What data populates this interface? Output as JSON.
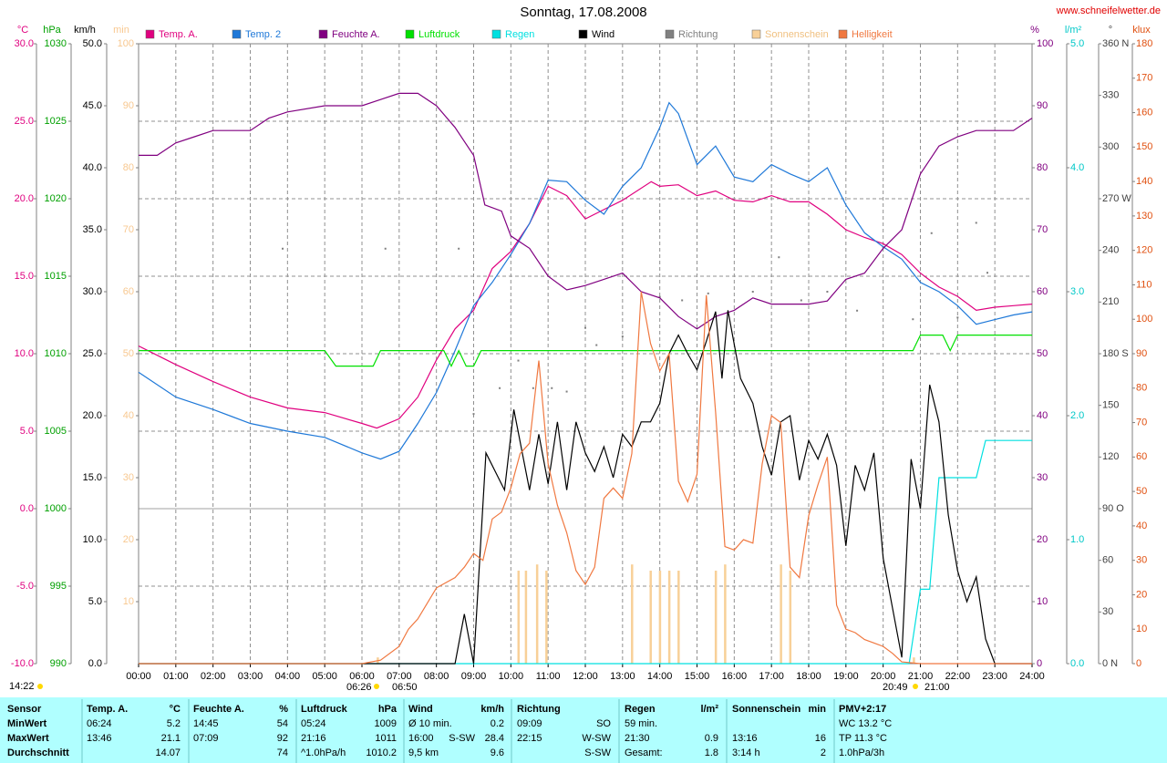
{
  "chart_data": {
    "type": "line",
    "title": "Sonntag, 17.08.2008",
    "source": "www.schneifelwetter.de",
    "xlim": [
      0,
      24
    ],
    "xticks": [
      {
        "value": 0,
        "label": "00:00"
      },
      {
        "value": 1,
        "label": "01:00"
      },
      {
        "value": 2,
        "label": "02:00"
      },
      {
        "value": 3,
        "label": "03:00"
      },
      {
        "value": 4,
        "label": "04:00"
      },
      {
        "value": 5,
        "label": "05:00"
      },
      {
        "value": 6,
        "label": "06:00"
      },
      {
        "value": 7,
        "label": "07:00"
      },
      {
        "value": 8,
        "label": "08:00"
      },
      {
        "value": 9,
        "label": "09:00"
      },
      {
        "value": 10,
        "label": "10:00"
      },
      {
        "value": 11,
        "label": "11:00"
      },
      {
        "value": 12,
        "label": "12:00"
      },
      {
        "value": 13,
        "label": "13:00"
      },
      {
        "value": 14,
        "label": "14:00"
      },
      {
        "value": 15,
        "label": "15:00"
      },
      {
        "value": 16,
        "label": "16:00"
      },
      {
        "value": 17,
        "label": "17:00"
      },
      {
        "value": 18,
        "label": "18:00"
      },
      {
        "value": 19,
        "label": "19:00"
      },
      {
        "value": 20,
        "label": "20:00"
      },
      {
        "value": 21,
        "label": "21:00"
      },
      {
        "value": 22,
        "label": "22:00"
      },
      {
        "value": 23,
        "label": "23:00"
      },
      {
        "value": 24,
        "label": "24:00"
      }
    ],
    "grid": true,
    "axes": [
      {
        "label": "°C",
        "color": "#e0007f",
        "lim": [
          -10,
          30
        ],
        "ticks": [
          {
            "value": -10,
            "label": "-10.0"
          },
          {
            "value": -5,
            "label": "-5.0"
          },
          {
            "value": 0,
            "label": "0.0"
          },
          {
            "value": 5,
            "label": "5.0"
          },
          {
            "value": 10,
            "label": "10.0"
          },
          {
            "value": 15,
            "label": "15.0"
          },
          {
            "value": 20,
            "label": "20.0"
          },
          {
            "value": 25,
            "label": "25.0"
          },
          {
            "value": 30,
            "label": "30.0"
          }
        ]
      },
      {
        "label": "hPa",
        "color": "#00a000",
        "lim": [
          990,
          1030
        ],
        "ticks": [
          990,
          995,
          1000,
          1005,
          1010,
          1015,
          1020,
          1025,
          1030
        ]
      },
      {
        "label": "km/h",
        "color": "#000000",
        "lim": [
          0,
          50
        ],
        "ticks": [
          {
            "value": 0,
            "label": "0.0"
          },
          {
            "value": 5,
            "label": "5.0"
          },
          {
            "value": 10,
            "label": "10.0"
          },
          {
            "value": 15,
            "label": "15.0"
          },
          {
            "value": 20,
            "label": "20.0"
          },
          {
            "value": 25,
            "label": "25.0"
          },
          {
            "value": 30,
            "label": "30.0"
          },
          {
            "value": 35,
            "label": "35.0"
          },
          {
            "value": 40,
            "label": "40.0"
          },
          {
            "value": 45,
            "label": "45.0"
          },
          {
            "value": 50,
            "label": "50.0"
          }
        ]
      },
      {
        "label": "min",
        "color": "#f8c890",
        "lim": [
          0,
          100
        ],
        "ticks": [
          10,
          20,
          30,
          40,
          50,
          60,
          70,
          80,
          90,
          100
        ]
      },
      {
        "label": "%",
        "color": "#800080",
        "lim": [
          0,
          100
        ],
        "ticks": [
          0,
          10,
          20,
          30,
          40,
          50,
          60,
          70,
          80,
          90,
          100
        ]
      },
      {
        "label": "l/m²",
        "color": "#00c8c8",
        "lim": [
          0,
          5
        ],
        "ticks": [
          {
            "value": 0,
            "label": "0.0"
          },
          {
            "value": 1,
            "label": "1.0"
          },
          {
            "value": 2,
            "label": "2.0"
          },
          {
            "value": 3,
            "label": "3.0"
          },
          {
            "value": 4,
            "label": "4.0"
          },
          {
            "value": 5,
            "label": "5.0"
          }
        ]
      },
      {
        "label": "°",
        "color": "#404040",
        "lim": [
          0,
          360
        ],
        "ticks": [
          {
            "value": 0,
            "label": "0 N"
          },
          30,
          60,
          {
            "value": 90,
            "label": "90 O"
          },
          120,
          150,
          {
            "value": 180,
            "label": "180 S"
          },
          210,
          240,
          {
            "value": 270,
            "label": "270 W"
          },
          300,
          330,
          {
            "value": 360,
            "label": "360 N"
          }
        ]
      },
      {
        "label": "klux",
        "color": "#e05010",
        "lim": [
          0,
          180
        ],
        "ticks": [
          0,
          10,
          20,
          30,
          40,
          50,
          60,
          70,
          80,
          90,
          100,
          110,
          120,
          130,
          140,
          150,
          160,
          170,
          180
        ]
      }
    ],
    "series": [
      {
        "name": "Temp. A.",
        "color": "#e0007f",
        "axis": 0,
        "type": "line",
        "x": [
          0,
          1,
          2,
          3,
          4,
          5,
          6,
          6.4,
          7,
          7.5,
          8,
          8.5,
          9,
          9.5,
          10,
          10.5,
          11,
          11.5,
          12,
          12.5,
          13,
          13.77,
          14,
          14.5,
          15,
          15.5,
          16,
          16.5,
          17,
          17.5,
          18,
          18.5,
          19,
          19.5,
          20,
          20.5,
          21,
          21.5,
          22,
          22.5,
          23,
          23.5,
          24
        ],
        "values": [
          10.5,
          9.3,
          8.2,
          7.2,
          6.5,
          6.2,
          5.5,
          5.2,
          5.8,
          7.2,
          9.6,
          11.6,
          12.8,
          15.5,
          16.6,
          18.4,
          20.8,
          20.2,
          18.7,
          19.3,
          19.9,
          21.1,
          20.8,
          20.9,
          20.2,
          20.5,
          19.9,
          19.8,
          20.2,
          19.8,
          19.8,
          19.0,
          18.0,
          17.5,
          17.1,
          16.4,
          15.2,
          14.3,
          13.7,
          12.8,
          13.0,
          13.1,
          13.2
        ]
      },
      {
        "name": "Temp. 2",
        "color": "#1e78d8",
        "axis": 0,
        "type": "line",
        "x": [
          0,
          1,
          2,
          3,
          4,
          5,
          6,
          6.5,
          7,
          7.5,
          8,
          8.5,
          9,
          9.5,
          10,
          10.5,
          11,
          11.5,
          12,
          12.5,
          13,
          13.5,
          14,
          14.25,
          14.5,
          15,
          15.5,
          16,
          16.5,
          17,
          17.5,
          18,
          18.5,
          19,
          19.5,
          20,
          20.5,
          21,
          21.5,
          22,
          22.5,
          23,
          23.5,
          24
        ],
        "values": [
          8.8,
          7.2,
          6.4,
          5.5,
          5.0,
          4.6,
          3.6,
          3.2,
          3.7,
          5.5,
          7.5,
          10.2,
          13.1,
          14.6,
          16.4,
          18.4,
          21.2,
          21.1,
          19.9,
          19.0,
          20.8,
          22.0,
          24.6,
          26.2,
          25.5,
          22.2,
          23.4,
          21.4,
          21.1,
          22.2,
          21.6,
          21.1,
          22.0,
          19.6,
          17.8,
          16.9,
          16.1,
          14.6,
          14.0,
          13.1,
          11.9,
          12.2,
          12.5,
          12.7
        ]
      },
      {
        "name": "Feuchte A.",
        "color": "#800080",
        "axis": 4,
        "type": "line",
        "x": [
          0,
          0.5,
          1,
          1.5,
          2,
          3,
          3.5,
          4,
          5,
          6,
          6.5,
          7,
          7.5,
          8,
          8.5,
          9,
          9.3,
          9.75,
          10,
          10.5,
          11,
          11.5,
          12,
          12.5,
          13,
          13.5,
          14,
          14.5,
          15,
          15.5,
          16,
          16.5,
          17,
          17.5,
          18,
          18.5,
          19,
          19.5,
          20,
          20.5,
          21,
          21.5,
          22,
          22.5,
          23,
          23.5,
          24
        ],
        "values": [
          82,
          82,
          84,
          85,
          86,
          86,
          88,
          89,
          90,
          90,
          91,
          92,
          92,
          90,
          86.5,
          82,
          74,
          73,
          69,
          67,
          62.5,
          60.3,
          61,
          62,
          63,
          60,
          59,
          56,
          54,
          56,
          57,
          59,
          58,
          58,
          58,
          58.5,
          62,
          63,
          67,
          70,
          79,
          83.5,
          85,
          86,
          86,
          86,
          88
        ]
      },
      {
        "name": "Luftdruck",
        "color": "#00e000",
        "axis": 1,
        "type": "line",
        "x": [
          0,
          5,
          5.3,
          6.3,
          6.5,
          8.2,
          8.4,
          8.6,
          8.8,
          9.0,
          9.2,
          20.8,
          21.0,
          21.6,
          21.8,
          22.0,
          24
        ],
        "values": [
          1010.2,
          1010.2,
          1009.2,
          1009.2,
          1010.2,
          1010.2,
          1009.2,
          1010.2,
          1009.2,
          1009.2,
          1010.2,
          1010.2,
          1011.2,
          1011.2,
          1010.2,
          1011.2,
          1011.2
        ]
      },
      {
        "name": "Regen",
        "color": "#00e0e0",
        "axis": 5,
        "type": "line",
        "x": [
          0,
          20.7,
          20.8,
          21.0,
          21.25,
          21.5,
          22.5,
          22.75,
          24
        ],
        "values": [
          0,
          0,
          0.2,
          0.6,
          0.6,
          1.5,
          1.5,
          1.8,
          1.8
        ]
      },
      {
        "name": "Wind",
        "color": "#000000",
        "axis": 2,
        "type": "line",
        "x": [
          0,
          8.5,
          8.75,
          9,
          9.33,
          9.83,
          10.08,
          10.5,
          10.75,
          11,
          11.25,
          11.5,
          11.75,
          12,
          12.25,
          12.5,
          12.75,
          13,
          13.25,
          13.5,
          13.75,
          14,
          14.25,
          14.5,
          14.75,
          15,
          15.25,
          15.5,
          15.67,
          15.83,
          16.17,
          16.5,
          16.75,
          17,
          17.25,
          17.5,
          17.75,
          18,
          18.25,
          18.5,
          18.75,
          19,
          19.25,
          19.5,
          19.75,
          20,
          20.25,
          20.5,
          20.75,
          21,
          21.25,
          21.5,
          21.75,
          22,
          22.25,
          22.5,
          22.75,
          23,
          24
        ],
        "values": [
          0,
          0,
          4,
          0,
          17,
          14,
          20.5,
          14,
          18.5,
          14.5,
          19.5,
          14,
          19.5,
          17,
          15.5,
          17.5,
          15,
          18.5,
          17.5,
          19.5,
          19.5,
          21,
          25,
          26.5,
          25,
          23.7,
          26,
          28.4,
          23,
          28.5,
          23,
          21,
          17.5,
          15.2,
          19.5,
          20,
          14.8,
          18,
          16.5,
          18.5,
          16,
          9.5,
          16,
          14,
          17,
          8.5,
          4.5,
          0.5,
          16.5,
          12.5,
          22.5,
          19.5,
          12,
          7.5,
          5,
          7,
          2,
          0,
          0
        ]
      },
      {
        "name": "Richtung",
        "color": "#808080",
        "axis": 6,
        "type": "scatter",
        "x": [
          3.87,
          6.63,
          8.6,
          9.0,
          9.7,
          10.2,
          10.6,
          11.1,
          11.5,
          12.0,
          12.3,
          13.0,
          14.0,
          14.6,
          15.3,
          16.5,
          17.2,
          17.8,
          18.5,
          19.3,
          20.0,
          20.8,
          21.3,
          22.0,
          22.5,
          22.8
        ],
        "values": [
          241,
          241,
          241,
          145,
          160,
          176,
          160,
          160,
          158,
          195,
          185,
          190,
          213,
          211,
          215,
          216,
          236,
          211,
          216,
          205,
          242,
          200,
          250,
          201,
          256,
          227
        ]
      },
      {
        "name": "Sonnenschein",
        "color": "#f8d098",
        "axis": 3,
        "type": "bar",
        "x": [
          6.42,
          10.2,
          10.4,
          10.7,
          10.95,
          13.25,
          13.75,
          14.0,
          14.25,
          14.5,
          15.5,
          15.75,
          17.25,
          17.5,
          20.82
        ],
        "values": [
          1,
          15,
          15,
          16,
          15,
          16,
          15,
          15,
          15,
          15,
          15,
          16,
          16,
          15,
          1
        ]
      },
      {
        "name": "Helligkeit",
        "color": "#f07840",
        "axis": 7,
        "type": "line",
        "x": [
          0,
          6,
          6.5,
          7,
          7.25,
          7.5,
          8,
          8.5,
          8.75,
          9,
          9.25,
          9.5,
          9.75,
          10,
          10.25,
          10.5,
          10.75,
          11,
          11.25,
          11.5,
          11.75,
          12,
          12.25,
          12.5,
          12.75,
          13,
          13.25,
          13.5,
          13.75,
          14,
          14.25,
          14.5,
          14.75,
          15,
          15.25,
          15.5,
          15.75,
          16,
          16.25,
          16.5,
          16.75,
          17,
          17.25,
          17.5,
          17.75,
          18,
          18.25,
          18.5,
          18.75,
          19,
          19.25,
          19.5,
          19.75,
          20,
          20.25,
          20.5,
          21,
          24
        ],
        "values": [
          0,
          0,
          1,
          5,
          10,
          13,
          22,
          25,
          28,
          32,
          30,
          42,
          44,
          51,
          61,
          64,
          88,
          58,
          46,
          38,
          27,
          23,
          28,
          48,
          51,
          48,
          61,
          108,
          93,
          85,
          90,
          53,
          47,
          55,
          107,
          73,
          34,
          33,
          36,
          35,
          58,
          72,
          70,
          28,
          25,
          43,
          52,
          60,
          17,
          10,
          9,
          7,
          6,
          5,
          3,
          0.5,
          0,
          0
        ]
      }
    ],
    "annotations": [
      "06:26",
      "06:50",
      "20:49",
      "21:00",
      "14:22"
    ]
  },
  "table": {
    "header": [
      {
        "l": "Sensor"
      },
      {
        "l": "Temp. A.",
        "r": "°C"
      },
      {
        "l": "Feuchte A.",
        "r": "%"
      },
      {
        "l": "Luftdruck",
        "r": "hPa"
      },
      {
        "l": "Wind",
        "r": "km/h"
      },
      {
        "l": "Richtung"
      },
      {
        "l": "Regen",
        "r": "l/m²"
      },
      {
        "l": "Sonnenschein",
        "r": "min"
      },
      {
        "l": "PMV+2:17"
      }
    ],
    "rows": [
      [
        {
          "l": "MinWert"
        },
        {
          "l": "06:24",
          "r": "5.2"
        },
        {
          "l": "14:45",
          "r": "54"
        },
        {
          "l": "05:24",
          "r": "1009"
        },
        {
          "l": "Ø 10 min.",
          "r": "0.2"
        },
        {
          "l": "09:09",
          "r": "SO"
        },
        {
          "l": "59 min."
        },
        {},
        {
          "l": "WC 13.2 °C"
        }
      ],
      [
        {
          "l": "MaxWert"
        },
        {
          "l": "13:46",
          "r": "21.1"
        },
        {
          "l": "07:09",
          "r": "92"
        },
        {
          "l": "21:16",
          "r": "1011"
        },
        {
          "l": "16:00",
          "m": "S-SW",
          "r": "28.4"
        },
        {
          "l": "22:15",
          "r": "W-SW"
        },
        {
          "l": "21:30",
          "r": "0.9"
        },
        {
          "l": "13:16",
          "r": "16"
        },
        {
          "l": "TP 11.3 °C"
        }
      ],
      [
        {
          "l": "Durchschnitt"
        },
        {
          "r": "14.07"
        },
        {
          "r": "74"
        },
        {
          "l": "^1.0hPa/h",
          "r": "1010.2"
        },
        {
          "l": "9,5 km",
          "r": "9.6"
        },
        {
          "r": "S-SW"
        },
        {
          "l": "Gesamt:",
          "r": "1.8"
        },
        {
          "l": "3:14 h",
          "r": "2"
        },
        {
          "l": "1.0hPa/3h"
        }
      ]
    ]
  }
}
